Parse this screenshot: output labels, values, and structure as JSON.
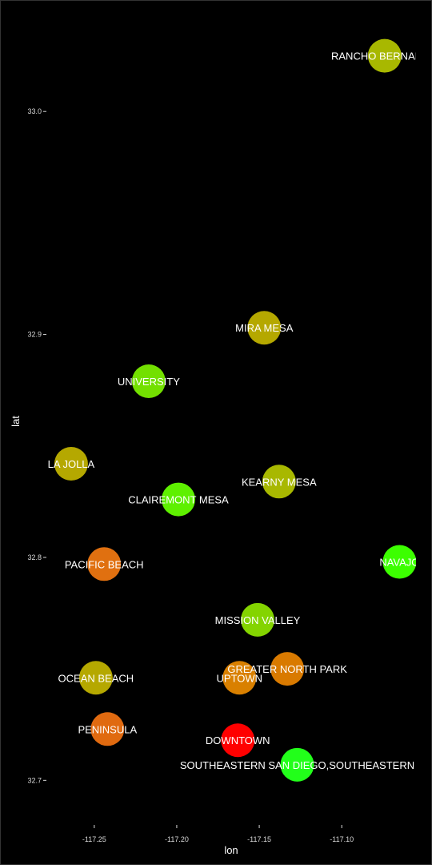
{
  "chart_data": {
    "type": "scatter",
    "title": "",
    "xlabel": "lon",
    "ylabel": "lat",
    "xlim": [
      -117.279,
      -117.055
    ],
    "ylim": [
      32.68,
      33.05
    ],
    "x_ticks": [
      -117.25,
      -117.2,
      -117.15,
      -117.1
    ],
    "x_tick_labels": [
      "-117.25",
      "-117.20",
      "-117.15",
      "-117.10"
    ],
    "y_ticks": [
      32.7,
      32.8,
      32.9,
      33.0
    ],
    "y_tick_labels": [
      "32.7",
      "32.8",
      "32.9",
      "33.0"
    ],
    "grid": false,
    "points": [
      {
        "label": "RANCHO BERNARDO",
        "x": -117.074,
        "y": 33.025,
        "color": "#a8b800"
      },
      {
        "label": "MIRA MESA",
        "x": -117.147,
        "y": 32.903,
        "color": "#b5a800"
      },
      {
        "label": "UNIVERSITY",
        "x": -117.217,
        "y": 32.879,
        "color": "#73e000"
      },
      {
        "label": "LA JOLLA",
        "x": -117.264,
        "y": 32.842,
        "color": "#b5a800"
      },
      {
        "label": "KEARNY MESA",
        "x": -117.138,
        "y": 32.834,
        "color": "#a8b800"
      },
      {
        "label": "CLAIREMONT MESA",
        "x": -117.199,
        "y": 32.826,
        "color": "#5ef000"
      },
      {
        "label": "PACIFIC BEACH",
        "x": -117.244,
        "y": 32.797,
        "color": "#e07010"
      },
      {
        "label": "NAVAJO",
        "x": -117.065,
        "y": 32.798,
        "color": "#3cff00"
      },
      {
        "label": "MISSION VALLEY",
        "x": -117.151,
        "y": 32.772,
        "color": "#84d400"
      },
      {
        "label": "GREATER NORTH PARK",
        "x": -117.133,
        "y": 32.75,
        "color": "#d97a00"
      },
      {
        "label": "UPTOWN",
        "x": -117.162,
        "y": 32.746,
        "color": "#d98000"
      },
      {
        "label": "OCEAN BEACH",
        "x": -117.249,
        "y": 32.746,
        "color": "#b5a800"
      },
      {
        "label": "PENINSULA",
        "x": -117.242,
        "y": 32.723,
        "color": "#e06a10"
      },
      {
        "label": "DOWNTOWN",
        "x": -117.163,
        "y": 32.718,
        "color": "#ff0000"
      },
      {
        "label": "SOUTHEASTERN SAN DIEGO,SOUTHEASTERN",
        "x": -117.127,
        "y": 32.707,
        "color": "#22ff1a"
      }
    ]
  }
}
